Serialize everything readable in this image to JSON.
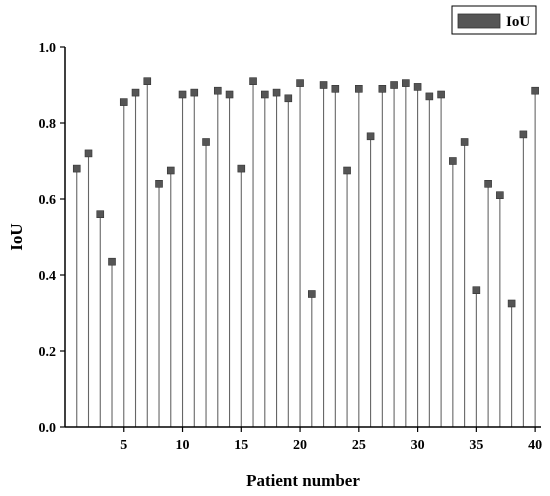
{
  "chart_data": {
    "type": "stem",
    "xlabel": "Patient number",
    "ylabel": "IoU",
    "xlim": [
      0,
      40.5
    ],
    "ylim": [
      0,
      1.0
    ],
    "xticks": [
      5,
      10,
      15,
      20,
      25,
      30,
      35,
      40
    ],
    "yticks": [
      0.0,
      0.2,
      0.4,
      0.6,
      0.8,
      1.0
    ],
    "ytick_labels": [
      "0.0",
      "0.2",
      "0.4",
      "0.6",
      "0.8",
      "1.0"
    ],
    "legend": {
      "label": "IoU",
      "position": "top-right"
    },
    "marker_color": "#555555",
    "x": [
      1,
      2,
      3,
      4,
      5,
      6,
      7,
      8,
      9,
      10,
      11,
      12,
      13,
      14,
      15,
      16,
      17,
      18,
      19,
      20,
      21,
      22,
      23,
      24,
      25,
      26,
      27,
      28,
      29,
      30,
      31,
      32,
      33,
      34,
      35,
      36,
      37,
      38,
      39,
      40
    ],
    "series": [
      {
        "name": "IoU",
        "values": [
          0.68,
          0.72,
          0.56,
          0.435,
          0.855,
          0.88,
          0.91,
          0.64,
          0.675,
          0.875,
          0.88,
          0.75,
          0.885,
          0.875,
          0.68,
          0.91,
          0.875,
          0.88,
          0.865,
          0.905,
          0.35,
          0.9,
          0.89,
          0.675,
          0.89,
          0.765,
          0.89,
          0.9,
          0.905,
          0.895,
          0.87,
          0.875,
          0.7,
          0.75,
          0.36,
          0.64,
          0.61,
          0.325,
          0.77,
          0.885
        ]
      }
    ]
  }
}
